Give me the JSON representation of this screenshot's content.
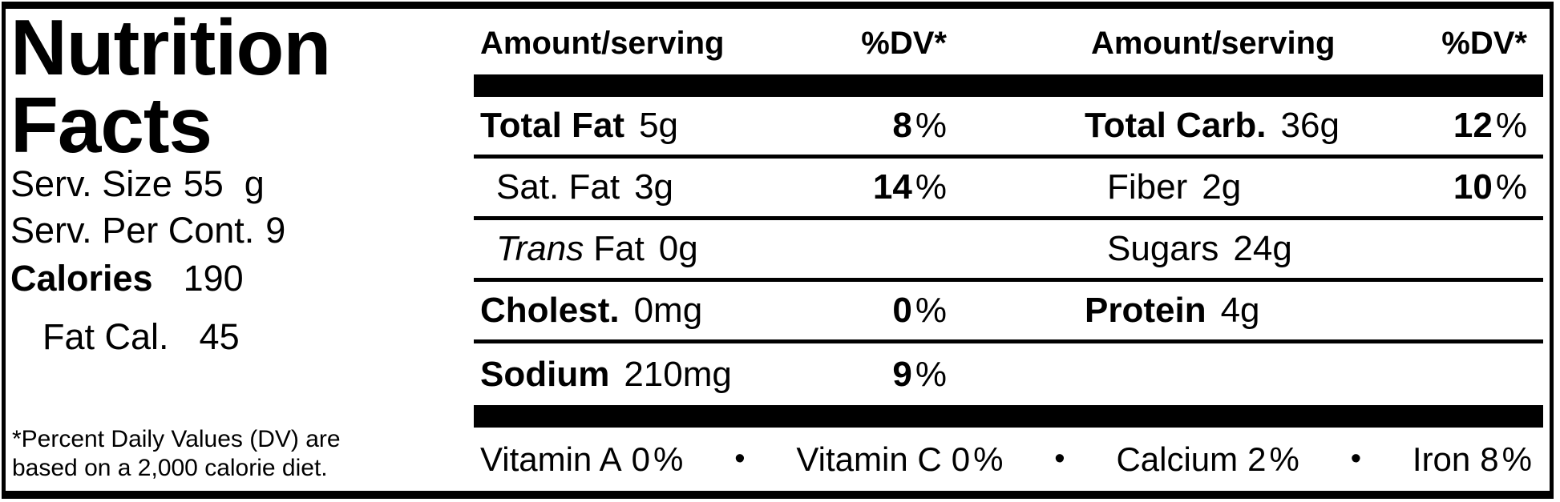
{
  "label": {
    "title_line1": "Nutrition",
    "title_line2": "Facts",
    "serving": {
      "size_label": "Serv. Size",
      "size_value": "55",
      "size_unit": "g",
      "per_container_label": "Serv. Per Cont.",
      "per_container_value": "9",
      "calories_label": "Calories",
      "calories_value": "190",
      "fat_calories_label": "Fat Cal.",
      "fat_calories_value": "45"
    },
    "footnote_line1": "*Percent Daily Values (DV) are",
    "footnote_line2": "based on a 2,000 calorie diet."
  },
  "table": {
    "headers": {
      "amount_left": "Amount/serving",
      "dv_left": "%DV*",
      "amount_right": "Amount/serving",
      "dv_right": "%DV*"
    },
    "rows": [
      {
        "left": {
          "name": "Total Fat",
          "amount": "5g",
          "dv": "8"
        },
        "right": {
          "name": "Total Carb.",
          "amount": "36g",
          "dv": "12"
        }
      },
      {
        "left": {
          "name": "Sat. Fat",
          "amount": "3g",
          "dv": "14"
        },
        "right": {
          "name": "Fiber",
          "amount": "2g",
          "dv": "10"
        }
      },
      {
        "left": {
          "name_italic": "Trans",
          "name": "Fat",
          "amount": "0g"
        },
        "right": {
          "name": "Sugars",
          "amount": "24g"
        }
      },
      {
        "left": {
          "name": "Cholest.",
          "amount": "0mg",
          "dv": "0"
        },
        "right": {
          "name": "Protein",
          "amount": "4g"
        }
      },
      {
        "left": {
          "name": "Sodium",
          "amount": "210mg",
          "dv": "9"
        },
        "right": {}
      }
    ],
    "percent_sign": "%",
    "separator": "•",
    "vitamins": [
      {
        "name": "Vitamin A",
        "value": "0"
      },
      {
        "name": "Vitamin C",
        "value": "0"
      },
      {
        "name": "Calcium",
        "value": "2"
      },
      {
        "name": "Iron",
        "value": "8"
      }
    ]
  },
  "colors": {
    "ink": "#000000",
    "paper": "#ffffff"
  }
}
